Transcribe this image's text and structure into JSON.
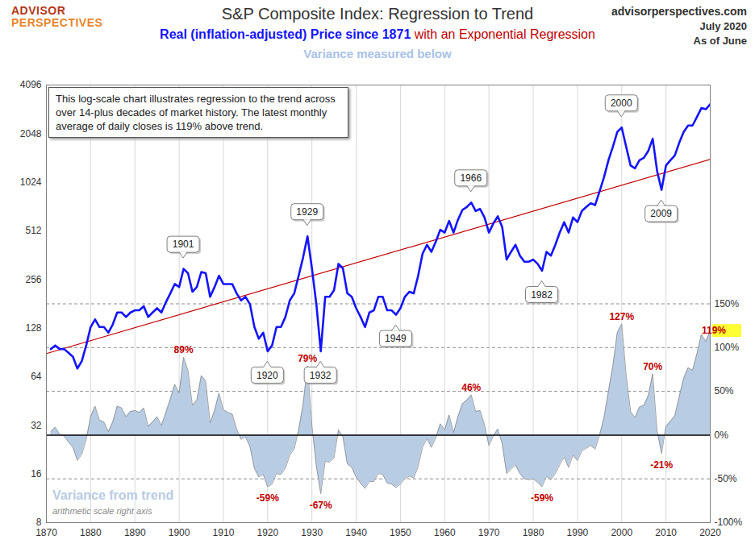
{
  "chart_data": {
    "type": "line",
    "logo": [
      "ADVISOR",
      "PERSPECTIVES"
    ],
    "title": "S&P Composite Index: Regression to Trend",
    "subtitle": "Variance measured below",
    "source": "advisorperspectives.com",
    "date": "July 2020",
    "date_note": "As of June",
    "note": "This log-scale chart illustrates regression to the trend across over 14-plus decades of market history. The latest monthly average of daily closes is 119% above trend.",
    "y2label": "arithmetic scale right axis",
    "log": "y",
    "grid": true,
    "xlim": [
      1870,
      2020
    ],
    "xticks": [
      1870,
      1880,
      1890,
      1900,
      1910,
      1920,
      1930,
      1940,
      1950,
      1960,
      1970,
      1980,
      1990,
      2000,
      2010,
      2020
    ],
    "ylim": [
      8,
      4096
    ],
    "yticks": [
      8,
      16,
      32,
      64,
      128,
      256,
      512,
      1024,
      2048,
      4096
    ],
    "y2lim": [
      -100,
      400
    ],
    "y2ticks": [
      {
        "value": -100,
        "label": "-100%"
      },
      {
        "value": -50,
        "label": "-50%"
      },
      {
        "value": 0,
        "label": "0%"
      },
      {
        "value": 50,
        "label": "50%"
      },
      {
        "value": 100,
        "label": "100%"
      },
      {
        "value": 150,
        "label": "150%"
      }
    ],
    "x": [
      1871,
      1872,
      1873,
      1874,
      1875,
      1876,
      1877,
      1878,
      1879,
      1880,
      1881,
      1882,
      1883,
      1884,
      1885,
      1886,
      1887,
      1888,
      1889,
      1890,
      1891,
      1892,
      1893,
      1894,
      1895,
      1896,
      1897,
      1898,
      1899,
      1900,
      1901,
      1902,
      1903,
      1904,
      1905,
      1906,
      1907,
      1908,
      1909,
      1910,
      1911,
      1912,
      1913,
      1914,
      1915,
      1916,
      1917,
      1918,
      1919,
      1920,
      1921,
      1922,
      1923,
      1924,
      1925,
      1926,
      1927,
      1928,
      1929,
      1930,
      1931,
      1932,
      1933,
      1934,
      1935,
      1936,
      1937,
      1938,
      1939,
      1940,
      1941,
      1942,
      1943,
      1944,
      1945,
      1946,
      1947,
      1948,
      1949,
      1950,
      1951,
      1952,
      1953,
      1954,
      1955,
      1956,
      1957,
      1958,
      1959,
      1960,
      1961,
      1962,
      1963,
      1964,
      1965,
      1966,
      1967,
      1968,
      1969,
      1970,
      1971,
      1972,
      1973,
      1974,
      1975,
      1976,
      1977,
      1978,
      1979,
      1980,
      1981,
      1982,
      1983,
      1984,
      1985,
      1986,
      1987,
      1988,
      1989,
      1990,
      1991,
      1992,
      1993,
      1994,
      1995,
      1996,
      1997,
      1998,
      1999,
      2000,
      2001,
      2002,
      2003,
      2004,
      2005,
      2006,
      2007,
      2008,
      2009,
      2010,
      2011,
      2012,
      2013,
      2014,
      2015,
      2016,
      2017,
      2018,
      2019,
      2020
    ],
    "series": [
      {
        "name": "Real (inflation-adjusted) Price since 1871",
        "type": "line",
        "color": "#1414ff",
        "values": [
          95,
          100,
          95,
          95,
          90,
          85,
          72,
          80,
          100,
          130,
          145,
          130,
          130,
          120,
          135,
          160,
          160,
          150,
          160,
          165,
          165,
          175,
          150,
          160,
          170,
          160,
          185,
          210,
          240,
          230,
          298,
          280,
          215,
          230,
          285,
          280,
          200,
          230,
          270,
          240,
          240,
          240,
          210,
          190,
          200,
          180,
          130,
          110,
          120,
          92,
          100,
          130,
          130,
          150,
          190,
          210,
          270,
          350,
          474,
          300,
          180,
          92,
          200,
          200,
          220,
          320,
          300,
          210,
          200,
          170,
          150,
          130,
          160,
          165,
          200,
          200,
          165,
          165,
          155,
          170,
          200,
          215,
          210,
          270,
          370,
          420,
          380,
          440,
          520,
          500,
          590,
          500,
          600,
          690,
          720,
          767,
          680,
          700,
          620,
          500,
          570,
          630,
          540,
          340,
          380,
          420,
          360,
          330,
          330,
          340,
          320,
          290,
          380,
          360,
          420,
          500,
          580,
          500,
          620,
          580,
          680,
          720,
          760,
          740,
          900,
          1100,
          1400,
          1700,
          2100,
          2234,
          1700,
          1300,
          1250,
          1400,
          1450,
          1600,
          1906,
          1200,
          919,
          1300,
          1400,
          1500,
          1800,
          2100,
          2300,
          2300,
          2600,
          2950,
          2900,
          3116
        ]
      },
      {
        "name": "with an Exponential Regression",
        "type": "line",
        "color": "#c00000",
        "x": [
          1870,
          2020
        ],
        "values": [
          89,
          1420
        ]
      },
      {
        "name": "Variance from trend",
        "type": "area",
        "axis": "y2",
        "color": "#b8cce4",
        "values": [
          4,
          9,
          1,
          -1,
          -8,
          -14,
          -29,
          -22,
          -5,
          21,
          33,
          17,
          15,
          4,
          15,
          33,
          31,
          21,
          27,
          28,
          26,
          31,
          10,
          15,
          21,
          11,
          26,
          41,
          58,
          48,
          89,
          74,
          34,
          40,
          68,
          62,
          14,
          28,
          48,
          29,
          26,
          24,
          7,
          -5,
          -2,
          -13,
          -38,
          -48,
          -45,
          -59,
          -56,
          -44,
          -45,
          -38,
          -23,
          -16,
          6,
          35,
          79,
          11,
          -35,
          -67,
          -30,
          -31,
          -26,
          6,
          -2,
          -33,
          -37,
          -48,
          -55,
          -61,
          -53,
          -53,
          -44,
          -45,
          -55,
          -56,
          -60,
          -56,
          -50,
          -47,
          -49,
          -36,
          -14,
          -4,
          -14,
          -3,
          13,
          6,
          23,
          3,
          21,
          36,
          40,
          46,
          27,
          28,
          12,
          -12,
          -1,
          7,
          -10,
          -44,
          -39,
          -34,
          -44,
          -50,
          -51,
          -50,
          -54,
          -59,
          -47,
          -51,
          -44,
          -34,
          -25,
          -37,
          -23,
          -29,
          -18,
          -15,
          -12,
          -16,
          0,
          20,
          50,
          79,
          117,
          127,
          69,
          27,
          20,
          32,
          34,
          45,
          70,
          5,
          -21,
          10,
          16,
          22,
          44,
          65,
          77,
          74,
          93,
          115,
          107,
          119
        ]
      }
    ],
    "annotations": [
      {
        "label": "1901",
        "x": 1901,
        "y": 298
      },
      {
        "label": "1929",
        "x": 1929,
        "y": 474
      },
      {
        "label": "1966",
        "x": 1966,
        "y": 767
      },
      {
        "label": "2000",
        "x": 2000,
        "y": 2234
      },
      {
        "label": "1920",
        "x": 1920,
        "y": 92
      },
      {
        "label": "1932",
        "x": 1932,
        "y": 92
      },
      {
        "label": "1949",
        "x": 1949,
        "y": 155
      },
      {
        "label": "1982",
        "x": 1982,
        "y": 290
      },
      {
        "label": "2009",
        "x": 2009,
        "y": 919
      }
    ],
    "variance_labels": [
      {
        "label": "89%",
        "x": 1901,
        "y2": 89
      },
      {
        "label": "79%",
        "x": 1929,
        "y2": 79
      },
      {
        "label": "46%",
        "x": 1966,
        "y2": 46
      },
      {
        "label": "127%",
        "x": 2000,
        "y2": 127
      },
      {
        "label": "70%",
        "x": 2007,
        "y2": 70
      },
      {
        "label": "-59%",
        "x": 1920,
        "y2": -59
      },
      {
        "label": "-67%",
        "x": 1932,
        "y2": -67
      },
      {
        "label": "-59%",
        "x": 1982,
        "y2": -59
      },
      {
        "label": "-21%",
        "x": 2009,
        "y2": -21
      }
    ],
    "latest_label": {
      "label": "119%",
      "x": 2020,
      "y2": 119
    }
  }
}
